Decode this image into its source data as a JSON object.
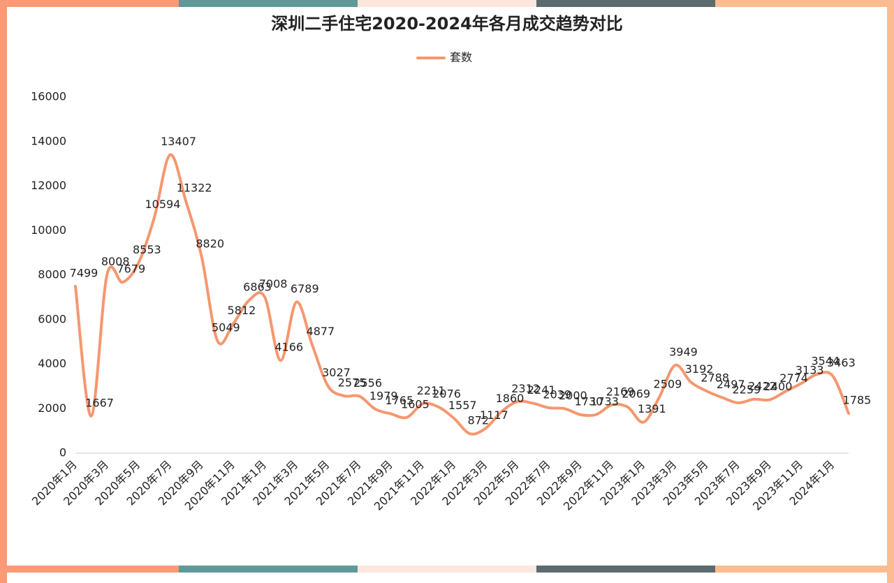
{
  "chart_data": {
    "type": "line",
    "title": "深圳二手住宅2020-2024年各月成交趋势对比",
    "categories": [
      "2020年1月",
      null,
      "2020年3月",
      null,
      "2020年5月",
      null,
      "2020年7月",
      null,
      "2020年9月",
      null,
      "2020年11月",
      null,
      "2021年1月",
      null,
      "2021年3月",
      null,
      "2021年5月",
      null,
      "2021年7月",
      null,
      "2021年9月",
      null,
      "2021年11月",
      null,
      "2022年1月",
      null,
      "2022年3月",
      null,
      "2022年5月",
      null,
      "2022年7月",
      null,
      "2022年9月",
      null,
      "2022年11月",
      null,
      "2023年1月",
      null,
      "2023年3月",
      null,
      "2023年5月",
      null,
      "2023年7月",
      null,
      "2023年9月",
      null,
      "2023年11月",
      null,
      "2024年1月",
      null
    ],
    "series": [
      {
        "name": "套数",
        "color": "#f5976f",
        "values": [
          7499,
          1667,
          8008,
          7679,
          8553,
          10594,
          13407,
          11322,
          8820,
          5049,
          5812,
          6863,
          7008,
          4166,
          6789,
          4877,
          3027,
          2575,
          2556,
          1979,
          1765,
          1605,
          2211,
          2076,
          1557,
          872,
          1117,
          1860,
          2312,
          2241,
          2039,
          2000,
          1730,
          1733,
          2169,
          2069,
          1391,
          2509,
          3949,
          3192,
          2788,
          2497,
          2259,
          2422,
          2400,
          2774,
          3133,
          3544,
          3463,
          1785
        ]
      }
    ],
    "ylim": [
      0,
      16000
    ],
    "yticks": [
      0,
      2000,
      4000,
      6000,
      8000,
      10000,
      12000,
      14000,
      16000
    ],
    "grid": false,
    "legend": "top"
  }
}
